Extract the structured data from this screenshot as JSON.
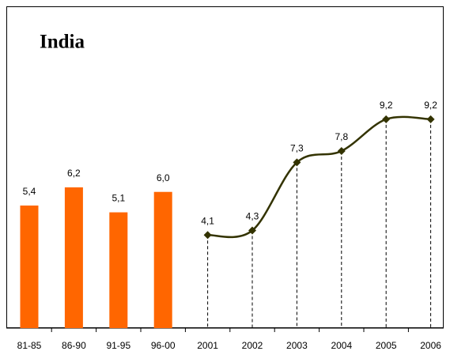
{
  "chart_data": {
    "type": "combo",
    "title": "India",
    "categories": [
      "81-85",
      "86-90",
      "91-95",
      "96-00",
      "2001",
      "2002",
      "2003",
      "2004",
      "2005",
      "2006"
    ],
    "ylim": [
      0,
      14
    ],
    "series": [
      {
        "type": "bar",
        "color": "#ff6600",
        "values": [
          5.4,
          6.2,
          5.1,
          6.0,
          null,
          null,
          null,
          null,
          null,
          null
        ],
        "value_labels": [
          "5,4",
          "6,2",
          "5,1",
          "6,0",
          null,
          null,
          null,
          null,
          null,
          null
        ]
      },
      {
        "type": "line",
        "color": "#333300",
        "values": [
          null,
          null,
          null,
          null,
          4.1,
          4.3,
          7.3,
          7.8,
          9.2,
          9.2
        ],
        "value_labels": [
          null,
          null,
          null,
          null,
          "4,1",
          "4,3",
          "7,3",
          "7,8",
          "9,2",
          "9,2"
        ]
      }
    ]
  }
}
